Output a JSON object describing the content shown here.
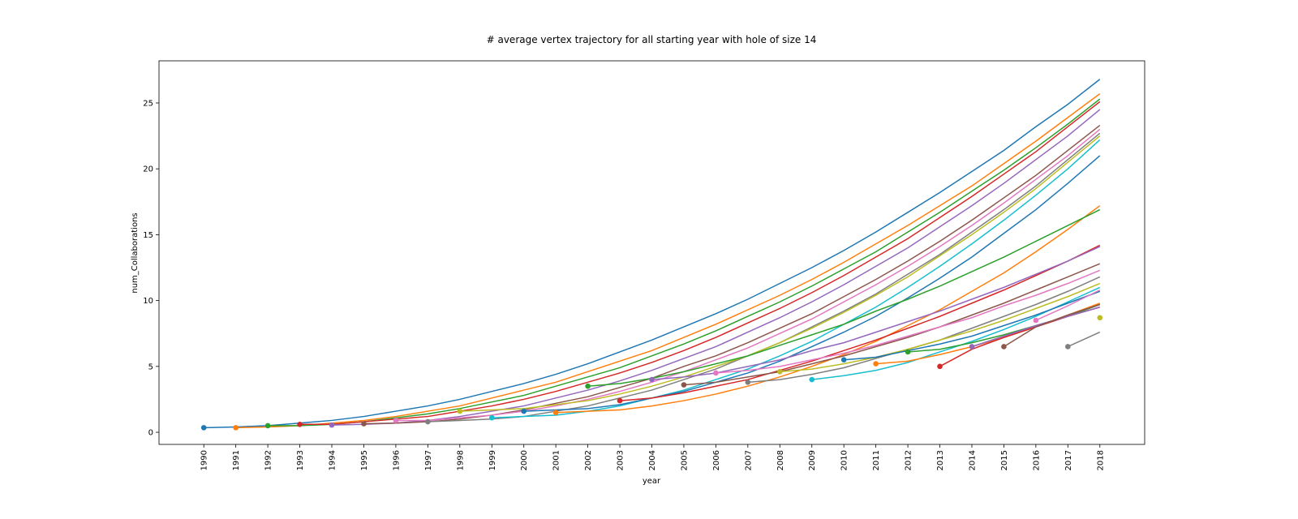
{
  "chart_data": {
    "type": "line",
    "title": "# average vertex trajectory for all starting year with hole of size 14",
    "xlabel": "year",
    "ylabel": "num_Collaborations",
    "x": [
      1990,
      1991,
      1992,
      1993,
      1994,
      1995,
      1996,
      1997,
      1998,
      1999,
      2000,
      2001,
      2002,
      2003,
      2004,
      2005,
      2006,
      2007,
      2008,
      2009,
      2010,
      2011,
      2012,
      2013,
      2014,
      2015,
      2016,
      2017,
      2018
    ],
    "xlim": [
      1988.6,
      2019.4
    ],
    "xticks": [
      1990,
      1991,
      1992,
      1993,
      1994,
      1995,
      1996,
      1997,
      1998,
      1999,
      2000,
      2001,
      2002,
      2003,
      2004,
      2005,
      2006,
      2007,
      2008,
      2009,
      2010,
      2011,
      2012,
      2013,
      2014,
      2015,
      2016,
      2017,
      2018
    ],
    "ylim": [
      -0.92,
      28.2
    ],
    "yticks": [
      0,
      5,
      10,
      15,
      20,
      25
    ],
    "grid": false,
    "start_markers": true,
    "series": [
      {
        "color": "#1f77b4",
        "values": [
          0.35,
          0.4,
          0.5,
          0.7,
          0.9,
          1.2,
          1.6,
          2.0,
          2.5,
          3.1,
          3.7,
          4.4,
          5.2,
          6.1,
          7.0,
          8.0,
          9.0,
          10.1,
          11.3,
          12.5,
          13.8,
          15.2,
          16.7,
          18.2,
          19.8,
          21.4,
          23.2,
          24.9,
          26.8
        ]
      },
      {
        "color": "#ff7f0e",
        "values": [
          null,
          0.35,
          0.4,
          0.5,
          0.7,
          0.9,
          1.2,
          1.6,
          2.0,
          2.6,
          3.2,
          3.8,
          4.6,
          5.4,
          6.2,
          7.2,
          8.2,
          9.3,
          10.4,
          11.6,
          12.9,
          14.3,
          15.7,
          17.2,
          18.7,
          20.4,
          22.1,
          23.9,
          25.7
        ]
      },
      {
        "color": "#2ca02c",
        "values": [
          null,
          null,
          0.5,
          0.5,
          0.6,
          0.8,
          1.1,
          1.4,
          1.8,
          2.3,
          2.8,
          3.5,
          4.2,
          4.9,
          5.8,
          6.7,
          7.7,
          8.8,
          9.9,
          11.1,
          12.4,
          13.7,
          15.2,
          16.7,
          18.3,
          19.9,
          21.6,
          23.4,
          25.3
        ]
      },
      {
        "color": "#d62728",
        "values": [
          null,
          null,
          null,
          0.6,
          0.6,
          0.8,
          1.0,
          1.2,
          1.6,
          2.0,
          2.5,
          3.1,
          3.8,
          4.5,
          5.3,
          6.2,
          7.2,
          8.3,
          9.4,
          10.6,
          11.9,
          13.3,
          14.7,
          16.3,
          17.9,
          19.6,
          21.3,
          23.2,
          25.1
        ]
      },
      {
        "color": "#9467bd",
        "values": [
          null,
          null,
          null,
          null,
          0.55,
          0.6,
          0.7,
          0.9,
          1.2,
          1.6,
          2.0,
          2.6,
          3.2,
          3.9,
          4.7,
          5.6,
          6.5,
          7.6,
          8.7,
          9.9,
          11.2,
          12.6,
          14.0,
          15.6,
          17.2,
          18.9,
          20.7,
          22.5,
          24.5
        ]
      },
      {
        "color": "#8c564b",
        "values": [
          null,
          null,
          null,
          null,
          null,
          0.65,
          0.7,
          0.8,
          1.0,
          1.3,
          1.7,
          2.2,
          2.7,
          3.4,
          4.1,
          5.0,
          5.8,
          6.8,
          7.9,
          9.0,
          10.3,
          11.6,
          13.0,
          14.5,
          16.1,
          17.8,
          19.5,
          21.4,
          23.3
        ]
      },
      {
        "color": "#e377c2",
        "values": [
          null,
          null,
          null,
          null,
          null,
          null,
          0.9,
          0.9,
          1.1,
          1.3,
          1.6,
          2.0,
          2.5,
          3.1,
          3.8,
          4.6,
          5.5,
          6.4,
          7.5,
          8.6,
          9.9,
          11.2,
          12.6,
          14.1,
          15.7,
          17.4,
          19.2,
          21.0,
          23.0
        ]
      },
      {
        "color": "#7f7f7f",
        "values": [
          null,
          null,
          null,
          null,
          null,
          null,
          null,
          0.8,
          0.9,
          1.0,
          1.2,
          1.6,
          2.0,
          2.6,
          3.2,
          4.0,
          4.8,
          5.8,
          6.8,
          8.0,
          9.2,
          10.5,
          12.0,
          13.5,
          15.2,
          16.9,
          18.7,
          20.7,
          22.7
        ]
      },
      {
        "color": "#bcbd22",
        "values": [
          null,
          null,
          null,
          null,
          null,
          null,
          null,
          null,
          1.6,
          1.7,
          1.8,
          2.1,
          2.4,
          2.9,
          3.5,
          4.2,
          5.0,
          5.8,
          6.8,
          7.9,
          9.1,
          10.4,
          11.8,
          13.4,
          15.0,
          16.7,
          18.5,
          20.5,
          22.5
        ]
      },
      {
        "color": "#17becf",
        "values": [
          null,
          null,
          null,
          null,
          null,
          null,
          null,
          null,
          null,
          1.1,
          1.2,
          1.3,
          1.6,
          2.0,
          2.6,
          3.2,
          4.0,
          4.8,
          5.8,
          6.9,
          8.2,
          9.5,
          11.0,
          12.6,
          14.3,
          16.1,
          18.0,
          20.0,
          22.2
        ]
      },
      {
        "color": "#1f77b4",
        "values": [
          null,
          null,
          null,
          null,
          null,
          null,
          null,
          null,
          null,
          null,
          1.6,
          1.7,
          1.8,
          2.1,
          2.6,
          3.1,
          3.8,
          4.5,
          5.4,
          6.5,
          7.6,
          8.8,
          10.2,
          11.7,
          13.3,
          15.1,
          16.9,
          18.9,
          21.0
        ]
      },
      {
        "color": "#ff7f0e",
        "values": [
          null,
          null,
          null,
          null,
          null,
          null,
          null,
          null,
          null,
          null,
          null,
          1.5,
          1.6,
          1.7,
          2.0,
          2.4,
          2.9,
          3.5,
          4.2,
          5.0,
          5.9,
          6.9,
          8.1,
          9.3,
          10.7,
          12.1,
          13.7,
          15.4,
          17.2
        ]
      },
      {
        "color": "#2ca02c",
        "values": [
          null,
          null,
          null,
          null,
          null,
          null,
          null,
          null,
          null,
          null,
          null,
          null,
          3.5,
          3.7,
          4.1,
          4.6,
          5.2,
          5.8,
          6.6,
          7.4,
          8.2,
          9.2,
          10.1,
          11.1,
          12.2,
          13.3,
          14.5,
          15.7,
          16.9
        ]
      },
      {
        "color": "#d62728",
        "values": [
          null,
          null,
          null,
          null,
          null,
          null,
          null,
          null,
          null,
          null,
          null,
          null,
          null,
          2.4,
          2.6,
          3.0,
          3.5,
          4.0,
          4.7,
          5.4,
          6.2,
          7.0,
          7.9,
          8.8,
          9.8,
          10.8,
          11.9,
          13.0,
          14.2
        ]
      },
      {
        "color": "#9467bd",
        "values": [
          null,
          null,
          null,
          null,
          null,
          null,
          null,
          null,
          null,
          null,
          null,
          null,
          null,
          null,
          4.0,
          4.2,
          4.5,
          5.0,
          5.5,
          6.2,
          6.8,
          7.6,
          8.4,
          9.2,
          10.1,
          11.0,
          12.0,
          13.0,
          14.1
        ]
      },
      {
        "color": "#8c564b",
        "values": [
          null,
          null,
          null,
          null,
          null,
          null,
          null,
          null,
          null,
          null,
          null,
          null,
          null,
          null,
          null,
          3.6,
          3.8,
          4.2,
          4.6,
          5.2,
          5.8,
          6.5,
          7.2,
          8.0,
          8.9,
          9.8,
          10.8,
          11.8,
          12.8
        ]
      },
      {
        "color": "#e377c2",
        "values": [
          null,
          null,
          null,
          null,
          null,
          null,
          null,
          null,
          null,
          null,
          null,
          null,
          null,
          null,
          null,
          null,
          4.5,
          4.7,
          5.0,
          5.5,
          6.0,
          6.6,
          7.3,
          8.0,
          8.7,
          9.6,
          10.4,
          11.3,
          12.3
        ]
      },
      {
        "color": "#7f7f7f",
        "values": [
          null,
          null,
          null,
          null,
          null,
          null,
          null,
          null,
          null,
          null,
          null,
          null,
          null,
          null,
          null,
          null,
          null,
          3.8,
          4.0,
          4.4,
          4.9,
          5.6,
          6.3,
          7.0,
          7.9,
          8.8,
          9.7,
          10.7,
          11.8
        ]
      },
      {
        "color": "#bcbd22",
        "values": [
          null,
          null,
          null,
          null,
          null,
          null,
          null,
          null,
          null,
          null,
          null,
          null,
          null,
          null,
          null,
          null,
          null,
          null,
          4.6,
          4.8,
          5.2,
          5.7,
          6.3,
          7.0,
          7.7,
          8.5,
          9.4,
          10.3,
          11.3
        ]
      },
      {
        "color": "#17becf",
        "values": [
          null,
          null,
          null,
          null,
          null,
          null,
          null,
          null,
          null,
          null,
          null,
          null,
          null,
          null,
          null,
          null,
          null,
          null,
          null,
          4.0,
          4.3,
          4.7,
          5.3,
          6.1,
          6.9,
          7.8,
          8.8,
          9.9,
          11.0
        ]
      },
      {
        "color": "#1f77b4",
        "values": [
          null,
          null,
          null,
          null,
          null,
          null,
          null,
          null,
          null,
          null,
          null,
          null,
          null,
          null,
          null,
          null,
          null,
          null,
          null,
          null,
          5.5,
          5.7,
          6.2,
          6.7,
          7.3,
          8.1,
          8.9,
          9.8,
          10.7
        ]
      },
      {
        "color": "#ff7f0e",
        "values": [
          null,
          null,
          null,
          null,
          null,
          null,
          null,
          null,
          null,
          null,
          null,
          null,
          null,
          null,
          null,
          null,
          null,
          null,
          null,
          null,
          null,
          5.2,
          5.4,
          5.9,
          6.5,
          7.2,
          8.0,
          8.9,
          9.8
        ]
      },
      {
        "color": "#2ca02c",
        "values": [
          null,
          null,
          null,
          null,
          null,
          null,
          null,
          null,
          null,
          null,
          null,
          null,
          null,
          null,
          null,
          null,
          null,
          null,
          null,
          null,
          null,
          null,
          6.1,
          6.3,
          6.8,
          7.4,
          8.1,
          8.8,
          9.7
        ]
      },
      {
        "color": "#d62728",
        "values": [
          null,
          null,
          null,
          null,
          null,
          null,
          null,
          null,
          null,
          null,
          null,
          null,
          null,
          null,
          null,
          null,
          null,
          null,
          null,
          null,
          null,
          null,
          null,
          5.0,
          6.3,
          7.2,
          8.0,
          8.8,
          9.5
        ]
      },
      {
        "color": "#9467bd",
        "values": [
          null,
          null,
          null,
          null,
          null,
          null,
          null,
          null,
          null,
          null,
          null,
          null,
          null,
          null,
          null,
          null,
          null,
          null,
          null,
          null,
          null,
          null,
          null,
          null,
          6.5,
          7.3,
          8.1,
          8.8,
          9.5
        ]
      },
      {
        "color": "#8c564b",
        "values": [
          null,
          null,
          null,
          null,
          null,
          null,
          null,
          null,
          null,
          null,
          null,
          null,
          null,
          null,
          null,
          null,
          null,
          null,
          null,
          null,
          null,
          null,
          null,
          null,
          null,
          6.5,
          8.0,
          8.9,
          9.7
        ]
      },
      {
        "color": "#e377c2",
        "values": [
          null,
          null,
          null,
          null,
          null,
          null,
          null,
          null,
          null,
          null,
          null,
          null,
          null,
          null,
          null,
          null,
          null,
          null,
          null,
          null,
          null,
          null,
          null,
          null,
          null,
          null,
          8.5,
          9.6,
          10.8
        ]
      },
      {
        "color": "#7f7f7f",
        "values": [
          null,
          null,
          null,
          null,
          null,
          null,
          null,
          null,
          null,
          null,
          null,
          null,
          null,
          null,
          null,
          null,
          null,
          null,
          null,
          null,
          null,
          null,
          null,
          null,
          null,
          null,
          null,
          6.5,
          7.6
        ]
      },
      {
        "color": "#bcbd22",
        "values": [
          null,
          null,
          null,
          null,
          null,
          null,
          null,
          null,
          null,
          null,
          null,
          null,
          null,
          null,
          null,
          null,
          null,
          null,
          null,
          null,
          null,
          null,
          null,
          null,
          null,
          null,
          null,
          null,
          8.7
        ]
      }
    ]
  }
}
